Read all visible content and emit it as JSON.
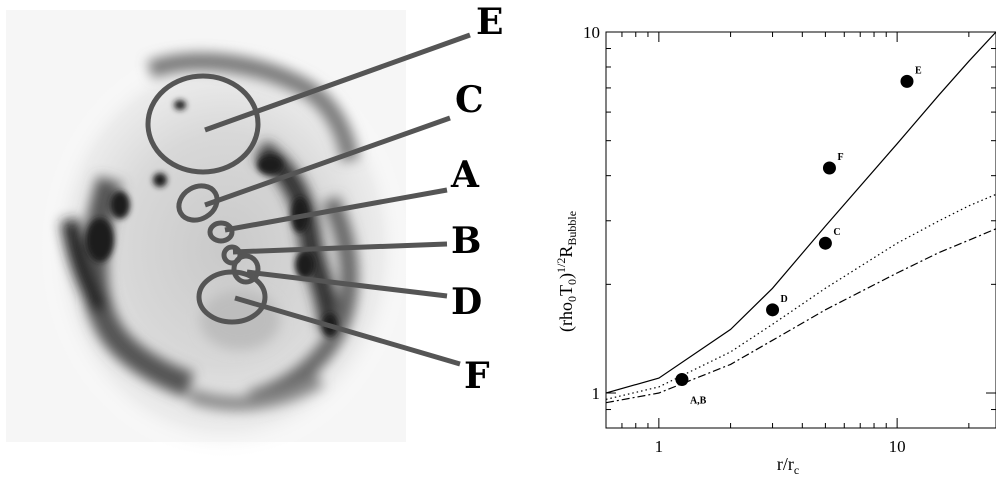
{
  "image_panel": {
    "labels": [
      "E",
      "C",
      "A",
      "B",
      "D",
      "F"
    ]
  },
  "chart_data": {
    "type": "scatter",
    "title": "",
    "xlabel": "r/r",
    "xlabel_sub": "c",
    "ylabel_parts": {
      "a": "(rho",
      "sub0": "0",
      "b": "T",
      "sub1": "0",
      "c": ")",
      "sup": "1/2",
      "d": "R",
      "sub2": "Bubble"
    },
    "x_scale": "log",
    "y_scale": "log",
    "xlim": [
      0.6,
      26
    ],
    "ylim": [
      0.8,
      10
    ],
    "x_ticks": [
      {
        "value": 1,
        "label": "1"
      },
      {
        "value": 10,
        "label": "10"
      }
    ],
    "y_ticks": [
      {
        "value": 1,
        "label": "1"
      },
      {
        "value": 10,
        "label": "10"
      }
    ],
    "points": [
      {
        "label": "A,B",
        "x": 1.25,
        "y": 1.09
      },
      {
        "label": "D",
        "x": 3.0,
        "y": 1.7
      },
      {
        "label": "C",
        "x": 5.0,
        "y": 2.6
      },
      {
        "label": "F",
        "x": 5.2,
        "y": 4.2
      },
      {
        "label": "E",
        "x": 11.0,
        "y": 7.3
      }
    ],
    "series": [
      {
        "style": "solid",
        "x": [
          0.6,
          1,
          2,
          3,
          5,
          10,
          15,
          20,
          26
        ],
        "y": [
          1.0,
          1.1,
          1.5,
          1.95,
          2.9,
          4.9,
          6.7,
          8.3,
          10.0
        ]
      },
      {
        "style": "dotted",
        "x": [
          0.6,
          1,
          2,
          3,
          5,
          10,
          15,
          20,
          26
        ],
        "y": [
          0.96,
          1.04,
          1.3,
          1.55,
          1.95,
          2.6,
          3.0,
          3.3,
          3.55
        ]
      },
      {
        "style": "dashdot",
        "x": [
          0.6,
          1,
          2,
          3,
          5,
          10,
          15,
          20,
          26
        ],
        "y": [
          0.94,
          1.0,
          1.2,
          1.4,
          1.7,
          2.15,
          2.45,
          2.65,
          2.85
        ]
      }
    ]
  }
}
